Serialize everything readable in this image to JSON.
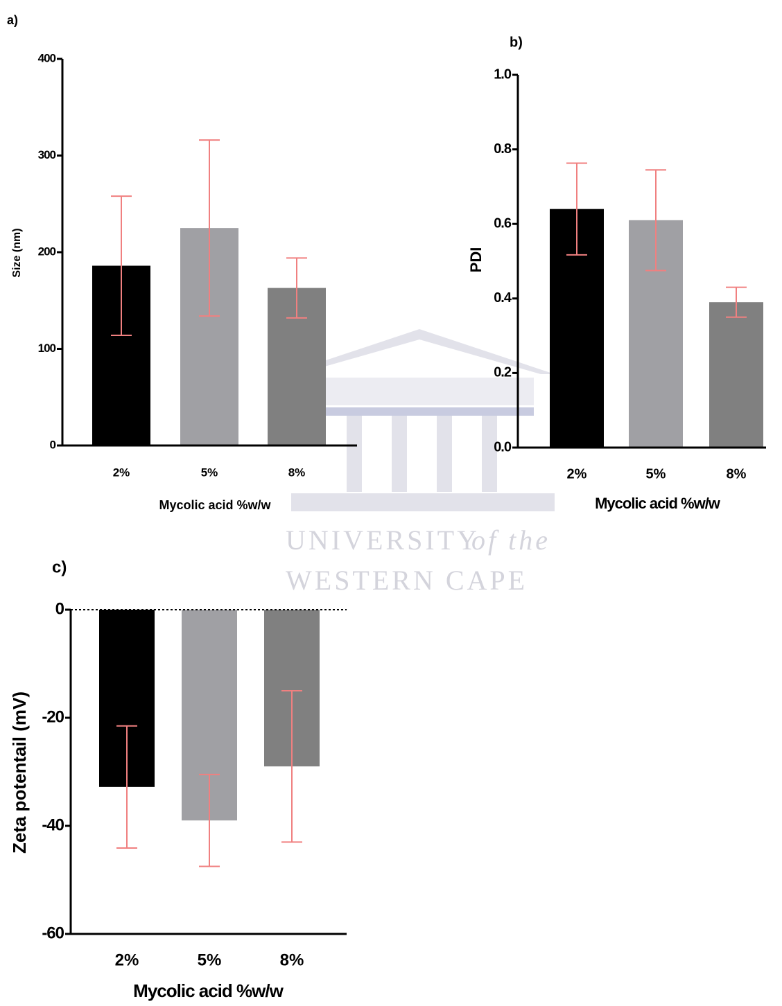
{
  "chart_data": [
    {
      "type": "bar",
      "panel_label": "a)",
      "y_label": "Size (nm)",
      "x_label": "Mycolic acid %w/w",
      "categories": [
        "2%",
        "5%",
        "8%"
      ],
      "values": [
        186,
        225,
        163
      ],
      "errors": [
        72,
        91,
        31
      ],
      "colors": [
        "#000000",
        "#a0a0a4",
        "#808080"
      ],
      "error_color": "#f08080",
      "ylim": [
        0,
        400
      ],
      "yticks": [
        0,
        100,
        200,
        300,
        400
      ]
    },
    {
      "type": "bar",
      "panel_label": "b)",
      "y_label": "PDI",
      "x_label": "Mycolic acid %w/w",
      "categories": [
        "2%",
        "5%",
        "8%"
      ],
      "values": [
        0.64,
        0.61,
        0.39
      ],
      "errors": [
        0.123,
        0.135,
        0.04
      ],
      "colors": [
        "#000000",
        "#a0a0a4",
        "#808080"
      ],
      "error_color": "#f08080",
      "ylim": [
        0,
        1
      ],
      "yticks": [
        {
          "value": 0,
          "label": "0.0"
        },
        0.2,
        0.4,
        0.6,
        0.8,
        {
          "value": 1,
          "label": "1.0"
        }
      ]
    },
    {
      "type": "bar",
      "panel_label": "c)",
      "y_label": "Zeta potentail (mV)",
      "x_label": "Mycolic acid %w/w",
      "categories": [
        "2%",
        "5%",
        "8%"
      ],
      "values": [
        -32.8,
        -39,
        -29
      ],
      "errors": [
        11.3,
        8.5,
        14
      ],
      "colors": [
        "#000000",
        "#a0a0a4",
        "#808080"
      ],
      "error_color": "#f08080",
      "ylim": [
        -60,
        0
      ],
      "yticks": [
        -60,
        -40,
        -20,
        0
      ],
      "zero_line": true
    }
  ],
  "watermark": {
    "line1": "UNIVERSITY",
    "line1_italic": "of the",
    "line2": "WESTERN CAPE"
  }
}
